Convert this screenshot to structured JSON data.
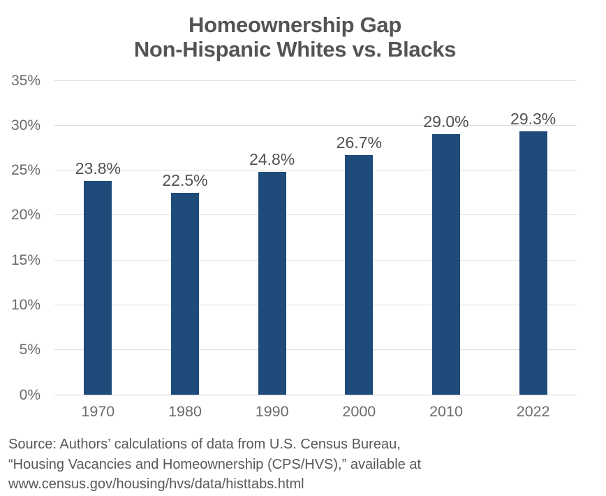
{
  "title": {
    "line1": "Homeownership Gap",
    "line2": "Non-Hispanic Whites vs. Blacks"
  },
  "chart_data": {
    "type": "bar",
    "title": "Homeownership Gap Non-Hispanic Whites vs. Blacks",
    "categories": [
      "1970",
      "1980",
      "1990",
      "2000",
      "2010",
      "2022"
    ],
    "values": [
      23.8,
      22.5,
      24.8,
      26.7,
      29.0,
      29.3
    ],
    "value_labels": [
      "23.8%",
      "22.5%",
      "24.8%",
      "26.7%",
      "29.0%",
      "29.3%"
    ],
    "xlabel": "",
    "ylabel": "",
    "ylim": [
      0,
      35
    ],
    "ytick_interval": 5,
    "ytick_labels": [
      "0%",
      "5%",
      "10%",
      "15%",
      "20%",
      "25%",
      "30%",
      "35%"
    ],
    "grid": true,
    "legend": false,
    "bar_color": "#1E4B7A"
  },
  "colors": {
    "bar": "#1E4B7A",
    "gridline": "#DEDEDE",
    "title_text": "#545456",
    "axis_text": "#6A6B6D",
    "value_text": "#515153",
    "source_text": "#58595B"
  },
  "source": {
    "line1": "Source: Authors’ calculations of data from U.S. Census Bureau,",
    "line2": "“Housing Vacancies and Homeownership (CPS/HVS),” available at",
    "line3": "www.census.gov/housing/hvs/data/histtabs.html"
  }
}
